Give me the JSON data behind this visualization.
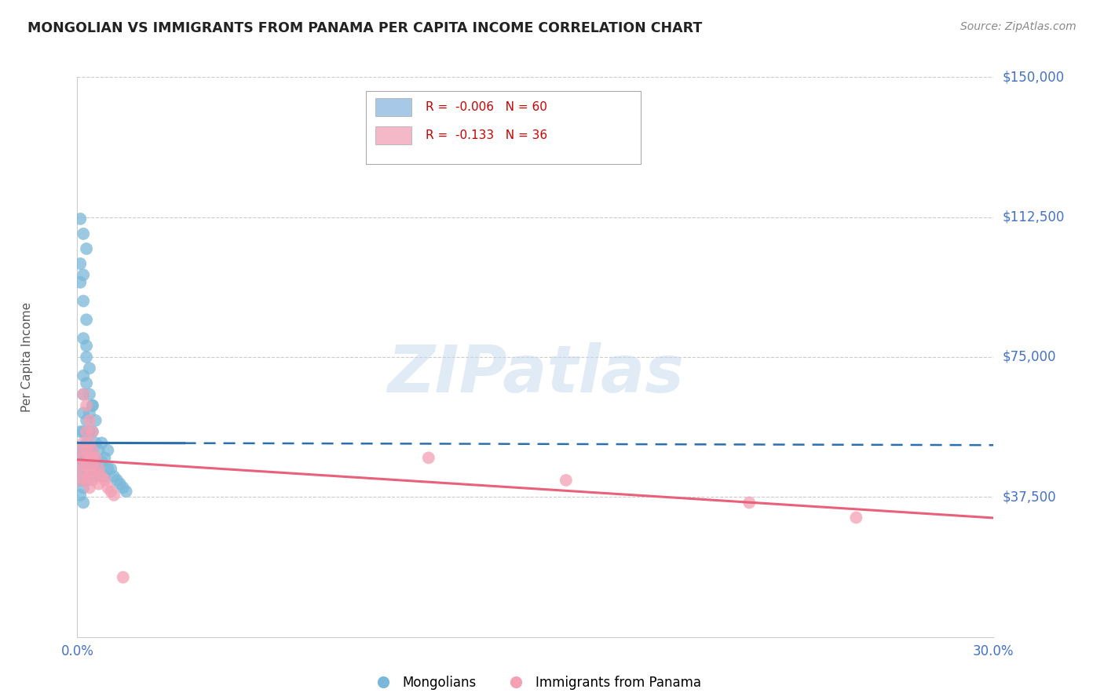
{
  "title": "MONGOLIAN VS IMMIGRANTS FROM PANAMA PER CAPITA INCOME CORRELATION CHART",
  "source": "Source: ZipAtlas.com",
  "ylabel": "Per Capita Income",
  "ytick_vals": [
    0,
    37500,
    75000,
    112500,
    150000
  ],
  "ytick_labels": [
    "",
    "$37,500",
    "$75,000",
    "$112,500",
    "$150,000"
  ],
  "xlim": [
    0.0,
    0.3
  ],
  "ylim": [
    0,
    150000
  ],
  "legend_label1": "Mongolians",
  "legend_label2": "Immigrants from Panama",
  "mongolian_color": "#7ab8d9",
  "panama_color": "#f4a0b5",
  "reg_line_mongolian_color": "#2c6fad",
  "reg_line_panama_color": "#e8607a",
  "background_color": "#ffffff",
  "grid_color": "#cccccc",
  "title_color": "#222222",
  "axis_tick_color": "#4472c4",
  "watermark_text": "ZIPatlas",
  "watermark_color": "#c5d8ed",
  "legend_box_color1": "#a8c8e8",
  "legend_box_color2": "#f4b8c8",
  "legend_text_color": "#cc0000",
  "legend_r1": "R =  -0.006",
  "legend_n1": "N = 60",
  "legend_r2": "R =  -0.133",
  "legend_n2": "N = 36",
  "mong_x": [
    0.001,
    0.001,
    0.001,
    0.001,
    0.002,
    0.002,
    0.002,
    0.002,
    0.002,
    0.003,
    0.003,
    0.003,
    0.003,
    0.003,
    0.004,
    0.004,
    0.004,
    0.004,
    0.005,
    0.005,
    0.005,
    0.005,
    0.006,
    0.006,
    0.006,
    0.006,
    0.007,
    0.007,
    0.008,
    0.008,
    0.009,
    0.009,
    0.01,
    0.01,
    0.011,
    0.012,
    0.013,
    0.014,
    0.015,
    0.016,
    0.002,
    0.003,
    0.004,
    0.005,
    0.003,
    0.004,
    0.002,
    0.003,
    0.001,
    0.002,
    0.003,
    0.001,
    0.002,
    0.003,
    0.001,
    0.002,
    0.001,
    0.002,
    0.001,
    0.002
  ],
  "mong_y": [
    55000,
    50000,
    48000,
    45000,
    65000,
    60000,
    55000,
    50000,
    47000,
    58000,
    52000,
    48000,
    45000,
    42000,
    60000,
    55000,
    50000,
    46000,
    62000,
    55000,
    50000,
    45000,
    58000,
    52000,
    47000,
    43000,
    50000,
    45000,
    52000,
    47000,
    48000,
    43000,
    50000,
    45000,
    45000,
    43000,
    42000,
    41000,
    40000,
    39000,
    70000,
    68000,
    65000,
    62000,
    75000,
    72000,
    80000,
    78000,
    112000,
    108000,
    104000,
    95000,
    90000,
    85000,
    100000,
    97000,
    42000,
    40000,
    38000,
    36000
  ],
  "pan_x": [
    0.001,
    0.001,
    0.001,
    0.002,
    0.002,
    0.002,
    0.003,
    0.003,
    0.003,
    0.004,
    0.004,
    0.004,
    0.005,
    0.005,
    0.005,
    0.006,
    0.006,
    0.007,
    0.007,
    0.008,
    0.009,
    0.01,
    0.011,
    0.012,
    0.002,
    0.003,
    0.004,
    0.005,
    0.003,
    0.004,
    0.005,
    0.115,
    0.16,
    0.22,
    0.255,
    0.015
  ],
  "pan_y": [
    50000,
    46000,
    42000,
    52000,
    48000,
    44000,
    50000,
    46000,
    42000,
    48000,
    44000,
    40000,
    50000,
    46000,
    42000,
    48000,
    44000,
    45000,
    41000,
    43000,
    42000,
    40000,
    39000,
    38000,
    65000,
    62000,
    58000,
    55000,
    55000,
    52000,
    48000,
    48000,
    42000,
    36000,
    32000,
    16000
  ]
}
